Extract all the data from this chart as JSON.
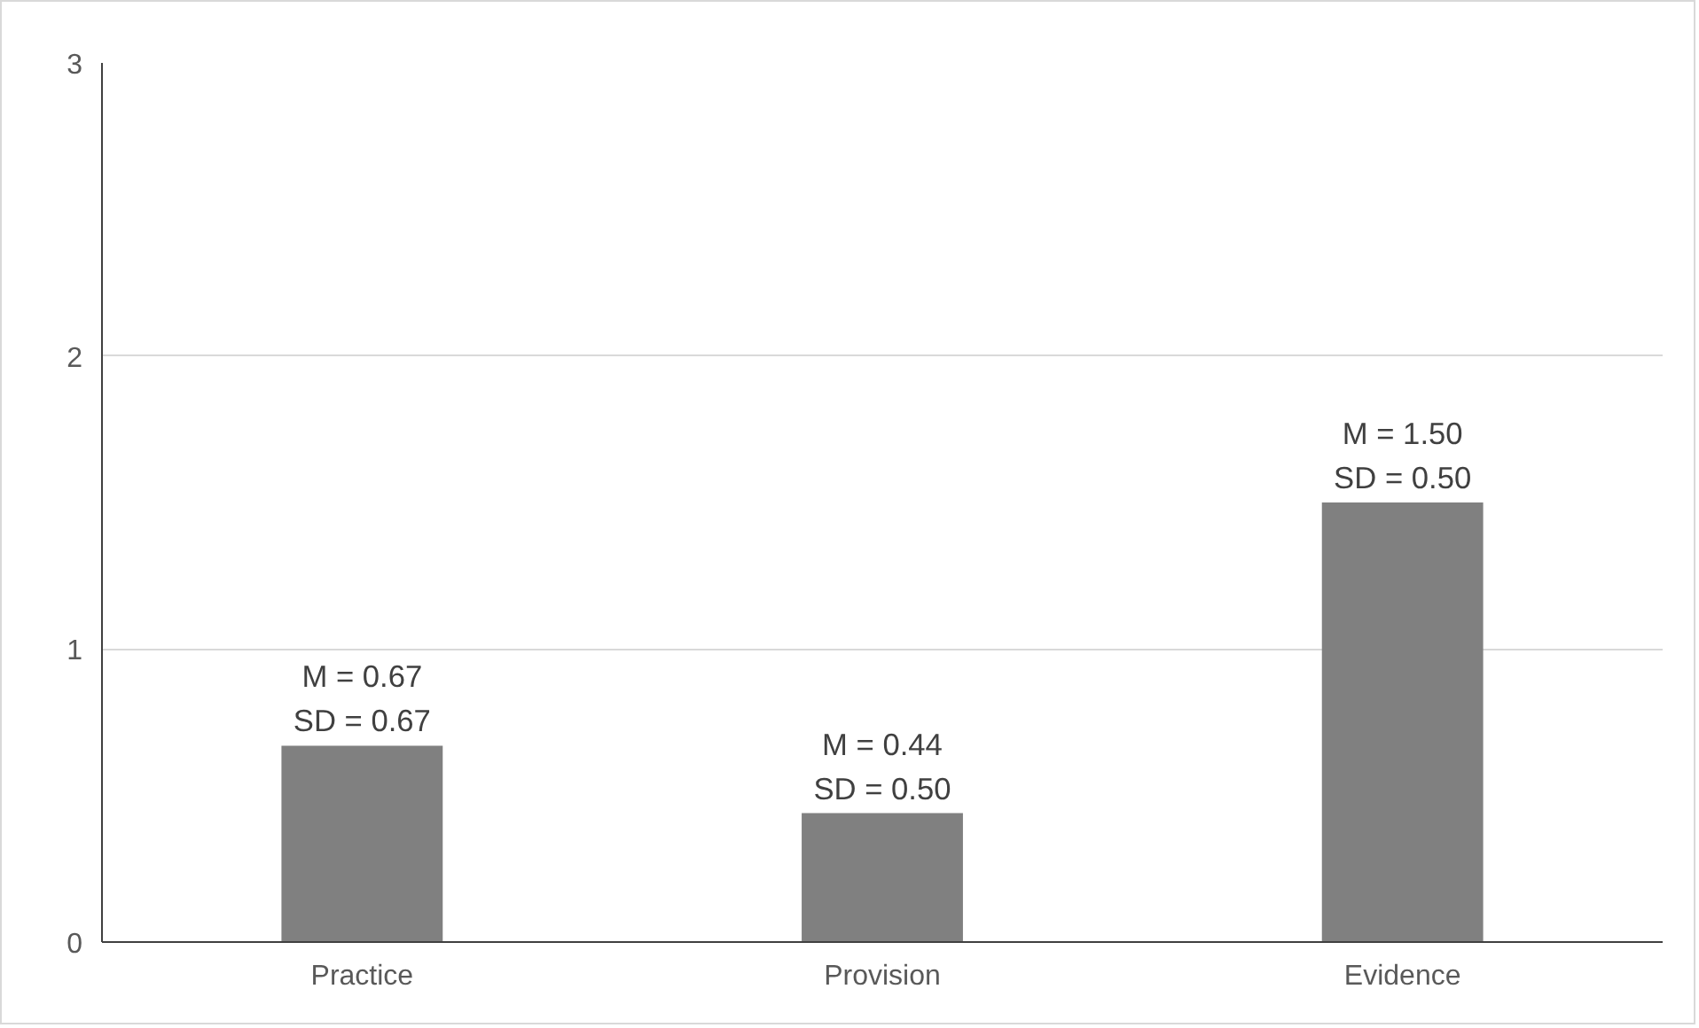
{
  "chart_data": {
    "type": "bar",
    "categories": [
      "Practice",
      "Provision",
      "Evidence"
    ],
    "values": [
      0.67,
      0.44,
      1.5
    ],
    "value_labels": [
      "M = 0.67\nSD = 0.67",
      "M = 0.44\nSD = 0.50",
      "M = 1.50\nSD = 0.50"
    ],
    "color": "#808080",
    "ylim": [
      0,
      3
    ],
    "yticks": [
      0,
      1,
      2,
      3
    ],
    "grid": "y"
  }
}
